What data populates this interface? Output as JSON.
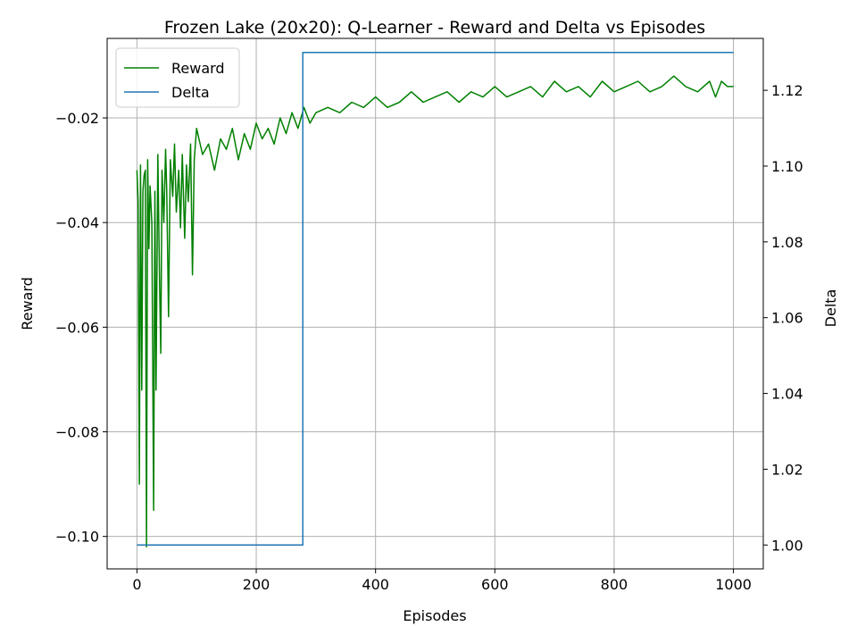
{
  "chart_data": {
    "type": "line",
    "title": "Frozen Lake (20x20): Q-Learner - Reward and Delta vs Episodes",
    "xlabel": "Episodes",
    "ylabel": "Reward",
    "y2label": "Delta",
    "xlim": [
      -50,
      1050
    ],
    "ylim": [
      -0.1062,
      -0.0048
    ],
    "y2lim": [
      0.9937,
      1.1337
    ],
    "xticks": [
      0,
      200,
      400,
      600,
      800,
      1000
    ],
    "xtick_labels": [
      "0",
      "200",
      "400",
      "600",
      "800",
      "1000"
    ],
    "yticks": [
      -0.1,
      -0.08,
      -0.06,
      -0.04,
      -0.02
    ],
    "ytick_labels": [
      "−0.10",
      "−0.08",
      "−0.06",
      "−0.04",
      "−0.02"
    ],
    "y2ticks": [
      1.0,
      1.02,
      1.04,
      1.06,
      1.08,
      1.1,
      1.12
    ],
    "y2tick_labels": [
      "1.00",
      "1.02",
      "1.04",
      "1.06",
      "1.08",
      "1.10",
      "1.12"
    ],
    "grid": true,
    "legend": "upper-left",
    "series": [
      {
        "name": "Reward",
        "axis": "left",
        "color": "#008000",
        "x": [
          0,
          2,
          4,
          6,
          8,
          10,
          12,
          14,
          16,
          18,
          20,
          22,
          25,
          28,
          30,
          32,
          35,
          38,
          40,
          42,
          45,
          48,
          50,
          53,
          56,
          60,
          63,
          66,
          70,
          73,
          76,
          80,
          83,
          86,
          90,
          93,
          96,
          100,
          110,
          120,
          130,
          140,
          150,
          160,
          170,
          180,
          190,
          200,
          210,
          220,
          230,
          240,
          250,
          260,
          270,
          280,
          290,
          300,
          320,
          340,
          360,
          380,
          400,
          420,
          440,
          460,
          480,
          500,
          520,
          540,
          560,
          580,
          600,
          620,
          640,
          660,
          680,
          700,
          720,
          740,
          760,
          780,
          800,
          820,
          840,
          860,
          880,
          900,
          920,
          940,
          960,
          970,
          980,
          990,
          1000
        ],
        "values": [
          -0.03,
          -0.036,
          -0.09,
          -0.029,
          -0.072,
          -0.034,
          -0.031,
          -0.03,
          -0.102,
          -0.028,
          -0.045,
          -0.033,
          -0.04,
          -0.095,
          -0.034,
          -0.072,
          -0.027,
          -0.052,
          -0.065,
          -0.03,
          -0.04,
          -0.026,
          -0.034,
          -0.058,
          -0.028,
          -0.035,
          -0.025,
          -0.038,
          -0.03,
          -0.041,
          -0.027,
          -0.043,
          -0.029,
          -0.036,
          -0.025,
          -0.05,
          -0.028,
          -0.022,
          -0.027,
          -0.025,
          -0.03,
          -0.024,
          -0.026,
          -0.022,
          -0.028,
          -0.023,
          -0.026,
          -0.021,
          -0.024,
          -0.022,
          -0.025,
          -0.02,
          -0.023,
          -0.019,
          -0.022,
          -0.018,
          -0.021,
          -0.019,
          -0.018,
          -0.019,
          -0.017,
          -0.018,
          -0.016,
          -0.018,
          -0.017,
          -0.015,
          -0.017,
          -0.016,
          -0.015,
          -0.017,
          -0.015,
          -0.016,
          -0.014,
          -0.016,
          -0.015,
          -0.014,
          -0.016,
          -0.013,
          -0.015,
          -0.014,
          -0.016,
          -0.013,
          -0.015,
          -0.014,
          -0.013,
          -0.015,
          -0.014,
          -0.012,
          -0.014,
          -0.015,
          -0.013,
          -0.016,
          -0.013,
          -0.014,
          -0.014
        ]
      },
      {
        "name": "Delta",
        "axis": "right",
        "color": "#1f77b4",
        "x": [
          0,
          278,
          278,
          1000
        ],
        "values": [
          1.0,
          1.0,
          1.13,
          1.13
        ]
      }
    ]
  }
}
